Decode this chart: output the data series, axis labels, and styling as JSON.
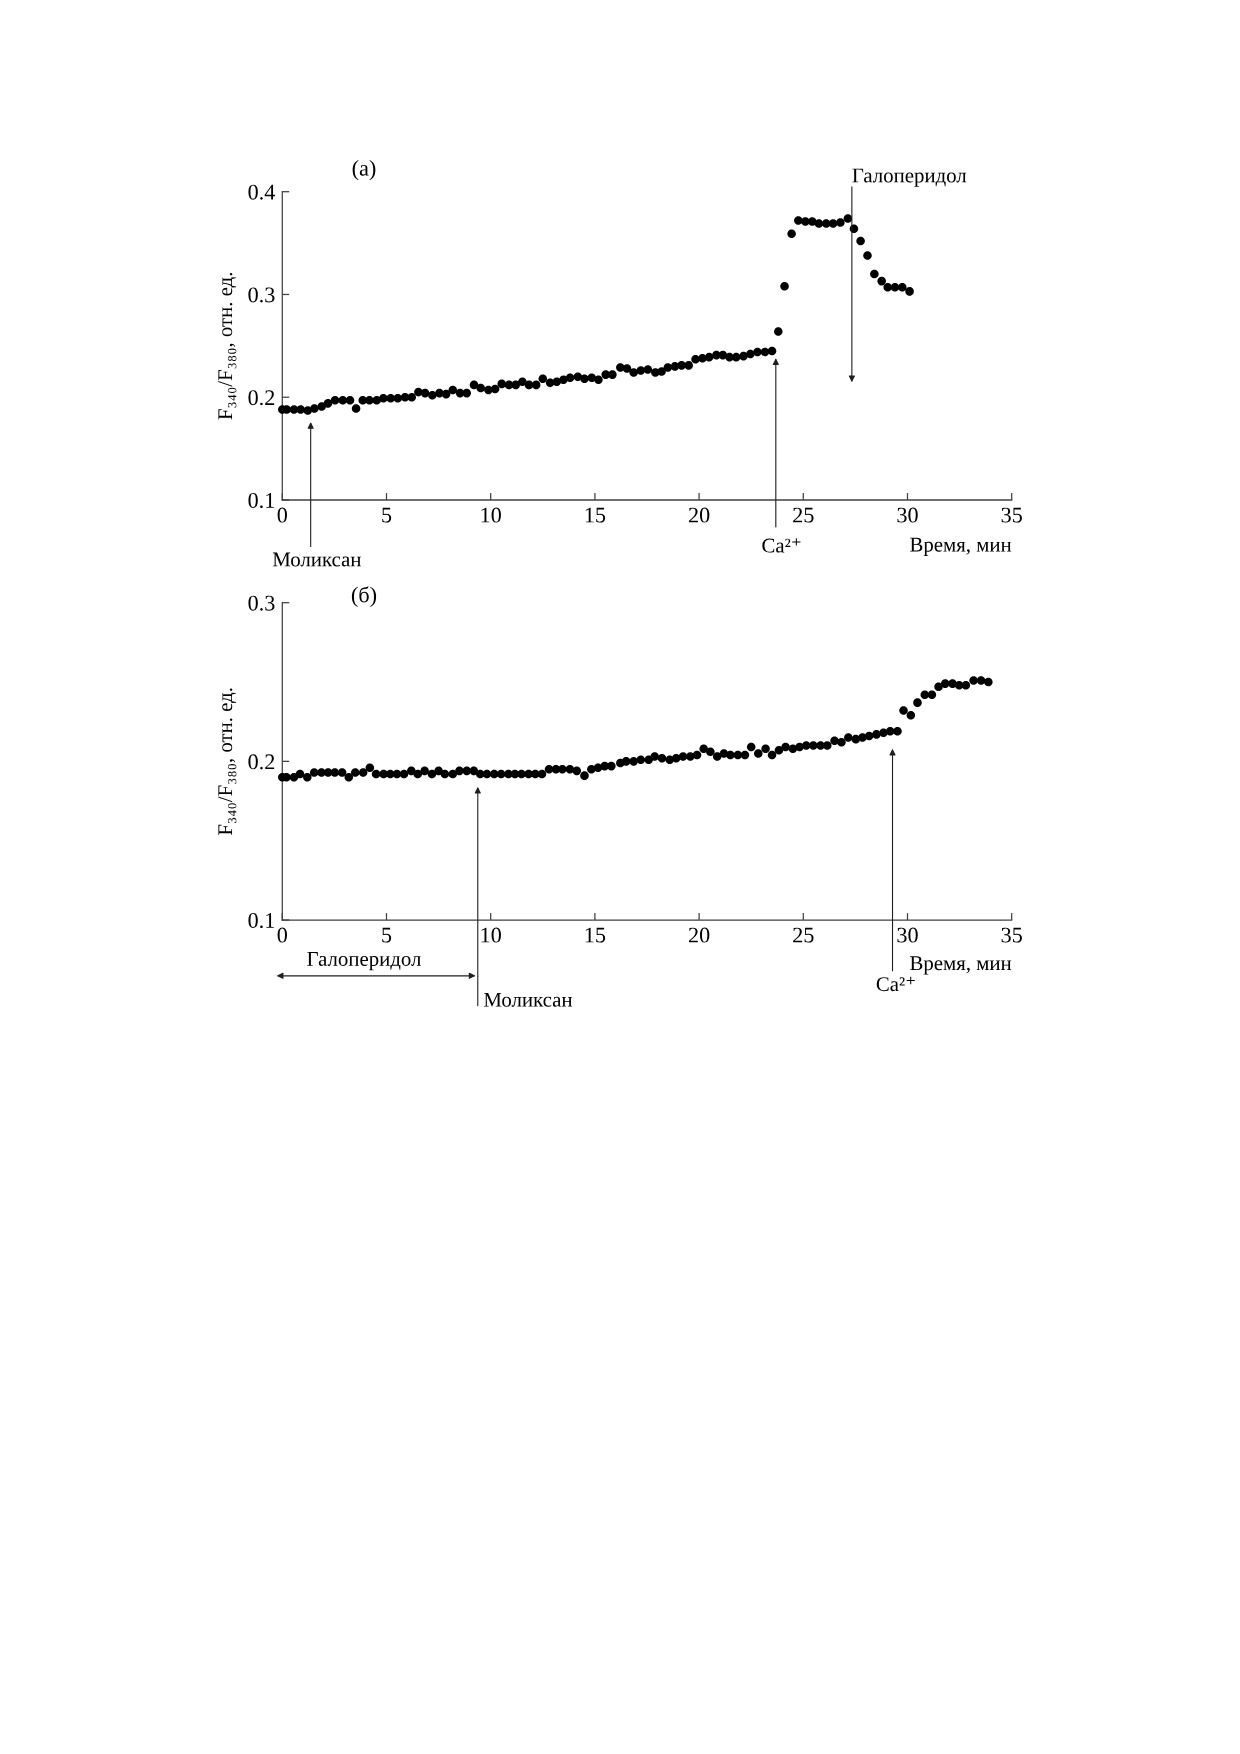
{
  "chart_data": [
    {
      "type": "scatter",
      "title": "(а)",
      "xlabel": "Время, мин",
      "ylabel": "F₃₄₀/F₃₈₀, отн. ед.",
      "color": "#000000",
      "marker": "circle",
      "x": [
        0,
        0.21,
        0.56,
        0.88,
        1.22,
        1.54,
        1.89,
        2.19,
        2.53,
        2.9,
        3.25,
        3.54,
        3.86,
        4.18,
        4.53,
        4.85,
        5.2,
        5.54,
        5.89,
        6.21,
        6.53,
        6.85,
        7.2,
        7.54,
        7.86,
        8.18,
        8.53,
        8.85,
        9.2,
        9.52,
        9.89,
        10.21,
        10.53,
        10.88,
        11.2,
        11.52,
        11.84,
        12.18,
        12.5,
        12.85,
        13.17,
        13.49,
        13.81,
        14.18,
        14.5,
        14.85,
        15.17,
        15.52,
        15.84,
        16.22,
        16.54,
        16.86,
        17.2,
        17.54,
        17.9,
        18.2,
        18.5,
        18.84,
        19.16,
        19.5,
        19.83,
        20.16,
        20.48,
        20.83,
        21.14,
        21.46,
        21.78,
        22.13,
        22.46,
        22.8,
        23.16,
        23.5,
        23.8,
        24.1,
        24.44,
        24.76,
        25.1,
        25.43,
        25.75,
        26.1,
        26.43,
        26.78,
        27.14,
        27.43,
        27.75,
        28.08,
        28.41,
        28.76,
        29.05,
        29.4,
        29.75,
        30.1
      ],
      "values": [
        0.188,
        0.188,
        0.188,
        0.188,
        0.187,
        0.189,
        0.191,
        0.194,
        0.197,
        0.197,
        0.197,
        0.189,
        0.197,
        0.197,
        0.197,
        0.199,
        0.199,
        0.199,
        0.2,
        0.2,
        0.205,
        0.204,
        0.202,
        0.204,
        0.203,
        0.207,
        0.204,
        0.204,
        0.212,
        0.209,
        0.207,
        0.208,
        0.213,
        0.212,
        0.212,
        0.215,
        0.212,
        0.212,
        0.218,
        0.214,
        0.215,
        0.217,
        0.219,
        0.22,
        0.218,
        0.219,
        0.217,
        0.222,
        0.222,
        0.229,
        0.228,
        0.224,
        0.226,
        0.227,
        0.224,
        0.225,
        0.229,
        0.23,
        0.231,
        0.231,
        0.237,
        0.238,
        0.239,
        0.241,
        0.241,
        0.239,
        0.239,
        0.24,
        0.242,
        0.244,
        0.244,
        0.245,
        0.264,
        0.308,
        0.359,
        0.372,
        0.371,
        0.371,
        0.369,
        0.369,
        0.369,
        0.37,
        0.374,
        0.364,
        0.352,
        0.338,
        0.32,
        0.313,
        0.307,
        0.307,
        0.307,
        0.303
      ],
      "xlim": [
        0,
        35
      ],
      "ylim": [
        0.1,
        0.4
      ],
      "xticks": [
        0,
        5,
        10,
        15,
        20,
        25,
        30,
        35
      ],
      "yticks": [
        0.1,
        0.2,
        0.3,
        0.4
      ],
      "annotations": [
        "Моликсан",
        "Ca²⁺",
        {
          "text": "Галоперидол",
          "x": 27.33,
          "y": 0.382
        }
      ]
    },
    {
      "type": "scatter",
      "title": "(б)",
      "xlabel": "Время, мин",
      "ylabel": "F₃₄₀/F₃₈₀, отн. ед.",
      "color": "#000000",
      "marker": "circle",
      "x": [
        0,
        0.2,
        0.56,
        0.85,
        1.2,
        1.53,
        1.88,
        2.2,
        2.52,
        2.87,
        3.19,
        3.5,
        3.88,
        4.2,
        4.5,
        4.86,
        5.18,
        5.5,
        5.84,
        6.19,
        6.5,
        6.83,
        7.18,
        7.5,
        7.8,
        8.18,
        8.5,
        8.85,
        9.19,
        9.5,
        9.82,
        10.17,
        10.5,
        10.85,
        11.16,
        11.48,
        11.82,
        12.14,
        12.46,
        12.8,
        13.13,
        13.44,
        13.8,
        14.13,
        14.5,
        14.83,
        15.15,
        15.47,
        15.79,
        16.22,
        16.5,
        16.86,
        17.2,
        17.58,
        17.87,
        18.22,
        18.59,
        18.9,
        19.23,
        19.58,
        19.9,
        20.22,
        20.54,
        20.87,
        21.19,
        21.5,
        21.86,
        22.2,
        22.5,
        22.84,
        23.19,
        23.5,
        23.83,
        24.15,
        24.5,
        24.82,
        25.14,
        25.48,
        25.83,
        26.15,
        26.5,
        26.83,
        27.16,
        27.52,
        27.84,
        28.16,
        28.51,
        28.85,
        29.17,
        29.52,
        29.81,
        30.16,
        30.48,
        30.83,
        31.17,
        31.49,
        31.81,
        32.16,
        32.48,
        32.8,
        33.17,
        33.53,
        33.88
      ],
      "values": [
        0.19,
        0.19,
        0.19,
        0.192,
        0.19,
        0.193,
        0.193,
        0.193,
        0.193,
        0.193,
        0.19,
        0.193,
        0.193,
        0.196,
        0.192,
        0.192,
        0.192,
        0.192,
        0.192,
        0.194,
        0.192,
        0.194,
        0.192,
        0.194,
        0.192,
        0.192,
        0.194,
        0.194,
        0.194,
        0.192,
        0.192,
        0.192,
        0.192,
        0.192,
        0.192,
        0.192,
        0.192,
        0.192,
        0.192,
        0.195,
        0.195,
        0.195,
        0.195,
        0.194,
        0.191,
        0.195,
        0.196,
        0.197,
        0.197,
        0.199,
        0.2,
        0.2,
        0.201,
        0.201,
        0.203,
        0.202,
        0.201,
        0.202,
        0.203,
        0.203,
        0.204,
        0.208,
        0.206,
        0.203,
        0.205,
        0.204,
        0.204,
        0.204,
        0.209,
        0.205,
        0.208,
        0.204,
        0.207,
        0.209,
        0.208,
        0.209,
        0.21,
        0.21,
        0.21,
        0.21,
        0.213,
        0.212,
        0.215,
        0.214,
        0.215,
        0.216,
        0.217,
        0.218,
        0.219,
        0.219,
        0.232,
        0.229,
        0.237,
        0.242,
        0.242,
        0.247,
        0.249,
        0.249,
        0.248,
        0.248,
        0.251,
        0.251,
        0.25
      ],
      "xlim": [
        0,
        35
      ],
      "ylim": [
        0.1,
        0.3
      ],
      "xticks": [
        0,
        5,
        10,
        15,
        20,
        25,
        30,
        35
      ],
      "yticks": [
        0.1,
        0.2,
        0.3
      ],
      "annotations": [
        "Галоперидол",
        "Моликсан",
        "Ca²⁺"
      ]
    }
  ]
}
